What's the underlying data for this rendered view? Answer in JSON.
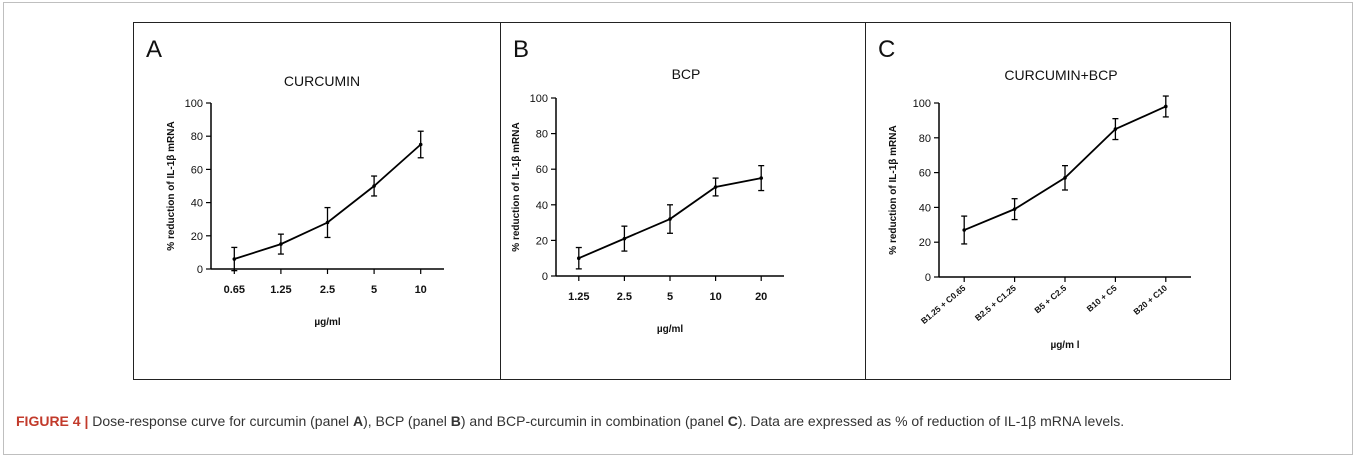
{
  "colors": {
    "caption_label": "#c23a2b",
    "line": "#000000",
    "frame": "#bfbfbf"
  },
  "panels": [
    {
      "letter": "A",
      "title": "CURCUMIN"
    },
    {
      "letter": "B",
      "title": "BCP"
    },
    {
      "letter": "C",
      "title": "CURCUMIN+BCP"
    }
  ],
  "chart_data": [
    {
      "type": "line",
      "title": "CURCUMIN",
      "xlabel": "µg/ml",
      "ylabel": "% reduction of IL-1β mRNA",
      "categories": [
        "0.65",
        "1.25",
        "2.5",
        "5",
        "10"
      ],
      "values": [
        6,
        15,
        28,
        50,
        75
      ],
      "errors": [
        7,
        6,
        9,
        6,
        8
      ],
      "ylim": [
        0,
        100
      ],
      "yticks": [
        0,
        20,
        40,
        60,
        80,
        100
      ],
      "grid": false,
      "legend": false
    },
    {
      "type": "line",
      "title": "BCP",
      "xlabel": "µg/ml",
      "ylabel": "% reduction of IL-1β mRNA",
      "categories": [
        "1.25",
        "2.5",
        "5",
        "10",
        "20"
      ],
      "values": [
        10,
        21,
        32,
        50,
        55
      ],
      "errors": [
        6,
        7,
        8,
        5,
        7
      ],
      "ylim": [
        0,
        100
      ],
      "yticks": [
        0,
        20,
        40,
        60,
        80,
        100
      ],
      "grid": false,
      "legend": false
    },
    {
      "type": "line",
      "title": "CURCUMIN+BCP",
      "xlabel": "µg/m l",
      "ylabel": "% reduction of IL-1β mRNA",
      "categories": [
        "B1.25 + C0.65",
        "B2.5 + C1.25",
        "B5 + C2.5",
        "B10 + C5",
        "B20 + C10"
      ],
      "values": [
        27,
        39,
        57,
        85,
        98
      ],
      "errors": [
        8,
        6,
        7,
        6,
        6
      ],
      "ylim": [
        0,
        100
      ],
      "yticks": [
        0,
        20,
        40,
        60,
        80,
        100
      ],
      "grid": false,
      "legend": false
    }
  ],
  "caption": {
    "fig_label": "FIGURE 4 |",
    "t1": " Dose-response curve for curcumin (panel ",
    "p1": "A",
    "t2": "), BCP (panel ",
    "p2": "B",
    "t3": ") and BCP-curcumin in combination (panel ",
    "p3": "C",
    "t4": "). Data are expressed as % of reduction of IL-1β mRNA levels."
  }
}
